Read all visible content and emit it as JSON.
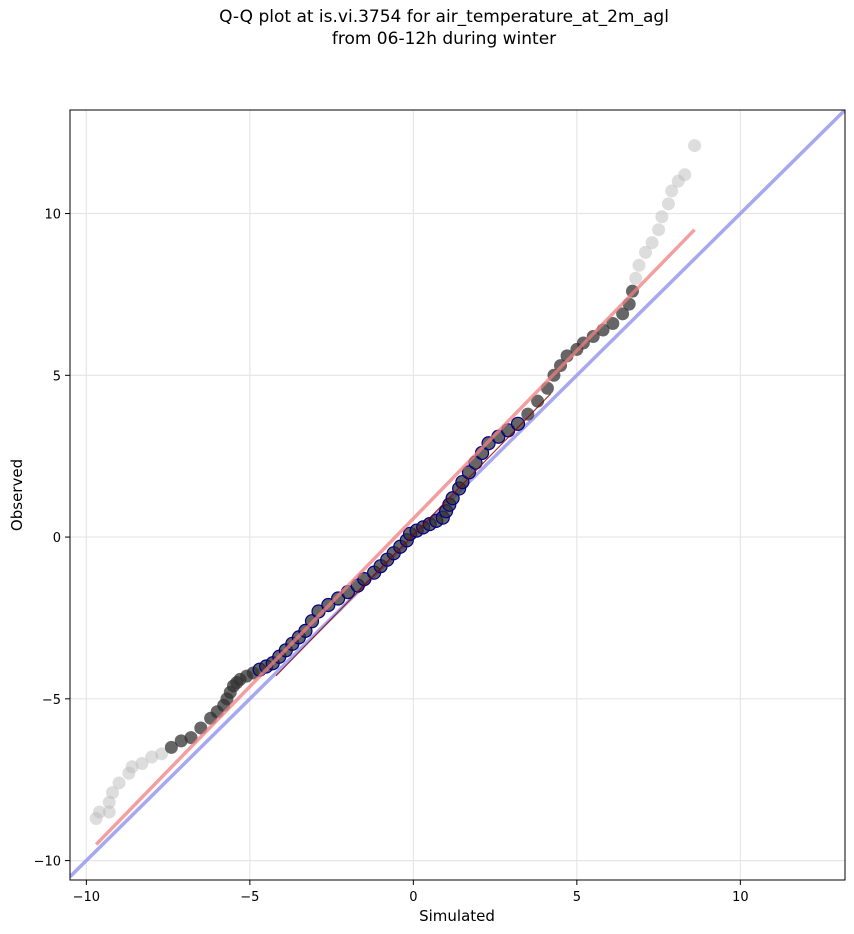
{
  "chart_data": {
    "type": "scatter",
    "title": [
      "Q-Q plot at is.vi.3754 for air_temperature_at_2m_agl",
      "from 06-12h during winter"
    ],
    "xlabel": "Simulated",
    "ylabel": "Observed",
    "xlim": [
      -10.5,
      13.2
    ],
    "ylim": [
      -10.6,
      13.2
    ],
    "xticks": [
      -10,
      -5,
      0,
      5,
      10
    ],
    "yticks": [
      -10,
      -5,
      0,
      5,
      10
    ],
    "tick_labels": {
      "x": [
        "−10",
        "−5",
        "0",
        "5",
        "10"
      ],
      "y": [
        "−10",
        "−5",
        "0",
        "5",
        "10"
      ]
    },
    "grid": true,
    "colors": {
      "points": "#333333",
      "tail_points": "#bbbbbb",
      "center_outline": "#00008b",
      "fit_line": "#f08080",
      "fit_line_inner": "#8b0000",
      "identity_line": "#9999ee"
    },
    "series": [
      {
        "kind": "quantiles",
        "points": [
          [
            -9.7,
            -8.7
          ],
          [
            -9.6,
            -8.5
          ],
          [
            -9.3,
            -8.5
          ],
          [
            -9.3,
            -8.2
          ],
          [
            -9.2,
            -7.9
          ],
          [
            -9.0,
            -7.6
          ],
          [
            -8.7,
            -7.3
          ],
          [
            -8.6,
            -7.1
          ],
          [
            -8.3,
            -7.0
          ],
          [
            -8.0,
            -6.8
          ],
          [
            -7.7,
            -6.7
          ],
          [
            -7.4,
            -6.5
          ],
          [
            -7.1,
            -6.3
          ],
          [
            -6.8,
            -6.2
          ],
          [
            -6.5,
            -5.9
          ],
          [
            -6.2,
            -5.6
          ],
          [
            -6.0,
            -5.4
          ],
          [
            -5.8,
            -5.2
          ],
          [
            -5.7,
            -5.0
          ],
          [
            -5.6,
            -4.8
          ],
          [
            -5.5,
            -4.6
          ],
          [
            -5.4,
            -4.5
          ],
          [
            -5.3,
            -4.4
          ],
          [
            -5.1,
            -4.3
          ],
          [
            -4.9,
            -4.2
          ],
          [
            -4.7,
            -4.1
          ],
          [
            -4.5,
            -4.0
          ],
          [
            -4.3,
            -3.9
          ],
          [
            -4.1,
            -3.7
          ],
          [
            -3.9,
            -3.5
          ],
          [
            -3.7,
            -3.3
          ],
          [
            -3.5,
            -3.1
          ],
          [
            -3.3,
            -2.9
          ],
          [
            -3.1,
            -2.6
          ],
          [
            -2.9,
            -2.3
          ],
          [
            -2.6,
            -2.1
          ],
          [
            -2.3,
            -1.9
          ],
          [
            -2.0,
            -1.7
          ],
          [
            -1.7,
            -1.5
          ],
          [
            -1.5,
            -1.3
          ],
          [
            -1.2,
            -1.1
          ],
          [
            -1.0,
            -0.9
          ],
          [
            -0.8,
            -0.7
          ],
          [
            -0.6,
            -0.5
          ],
          [
            -0.4,
            -0.3
          ],
          [
            -0.2,
            -0.1
          ],
          [
            -0.1,
            0.1
          ],
          [
            0.1,
            0.2
          ],
          [
            0.3,
            0.3
          ],
          [
            0.5,
            0.4
          ],
          [
            0.7,
            0.5
          ],
          [
            0.9,
            0.6
          ],
          [
            1.0,
            0.8
          ],
          [
            1.1,
            1.0
          ],
          [
            1.2,
            1.2
          ],
          [
            1.4,
            1.5
          ],
          [
            1.5,
            1.7
          ],
          [
            1.7,
            2.0
          ],
          [
            1.9,
            2.3
          ],
          [
            2.1,
            2.6
          ],
          [
            2.3,
            2.9
          ],
          [
            2.6,
            3.1
          ],
          [
            2.9,
            3.3
          ],
          [
            3.2,
            3.5
          ],
          [
            3.5,
            3.8
          ],
          [
            3.8,
            4.2
          ],
          [
            4.1,
            4.6
          ],
          [
            4.3,
            5.0
          ],
          [
            4.5,
            5.3
          ],
          [
            4.7,
            5.6
          ],
          [
            5.0,
            5.8
          ],
          [
            5.2,
            6.0
          ],
          [
            5.5,
            6.2
          ],
          [
            5.8,
            6.4
          ],
          [
            6.1,
            6.6
          ],
          [
            6.4,
            6.9
          ],
          [
            6.6,
            7.2
          ],
          [
            6.7,
            7.6
          ],
          [
            6.8,
            8.0
          ],
          [
            6.9,
            8.4
          ],
          [
            7.1,
            8.8
          ],
          [
            7.3,
            9.1
          ],
          [
            7.5,
            9.5
          ],
          [
            7.6,
            9.9
          ],
          [
            7.8,
            10.3
          ],
          [
            7.9,
            10.7
          ],
          [
            8.1,
            11.0
          ],
          [
            8.3,
            11.2
          ],
          [
            8.6,
            12.1
          ]
        ]
      },
      {
        "kind": "fit_line",
        "from": [
          -9.7,
          -9.5
        ],
        "to": [
          8.6,
          9.5
        ]
      },
      {
        "kind": "identity_line",
        "from": [
          -10.5,
          -10.5
        ],
        "to": [
          13.2,
          13.2
        ]
      }
    ]
  }
}
